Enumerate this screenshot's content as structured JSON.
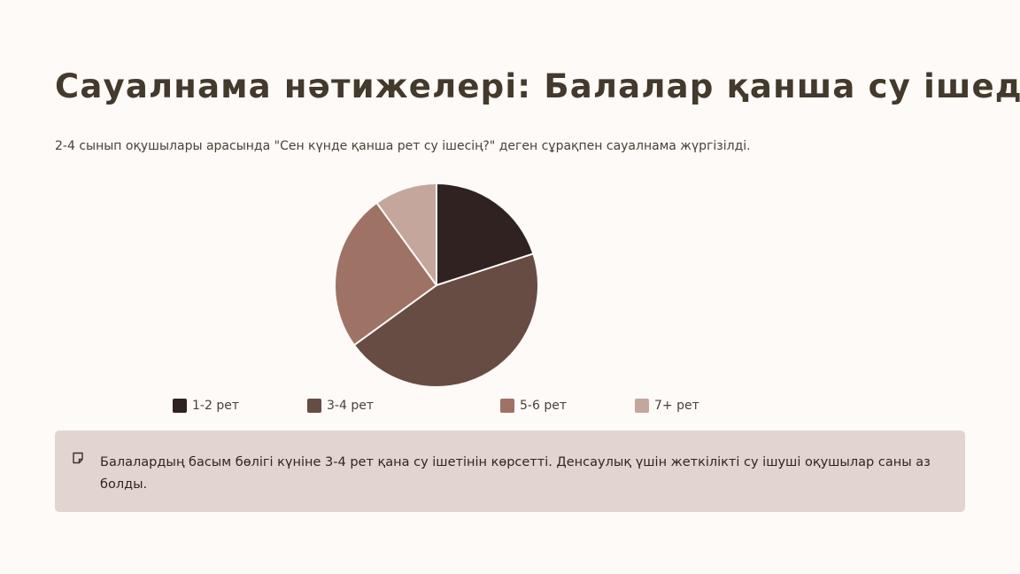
{
  "slide": {
    "title": "Сауалнама нәтижелері: Балалар қанша су ішеді",
    "subtitle": "2-4 сынып оқушылары арасында \"Сен күнде қанша рет су ішесің?\" деген сұрақпен сауалнама жүргізілді."
  },
  "chart_data": {
    "type": "pie",
    "title": "",
    "categories": [
      "1-2 рет",
      "3-4 рет",
      "5-6 рет",
      "7+ рет"
    ],
    "values": [
      20,
      45,
      25,
      10
    ],
    "colors": [
      "#2f2220",
      "#674c44",
      "#9e7366",
      "#c4a69c"
    ],
    "legend_position": "bottom"
  },
  "note": {
    "icon": "note-icon",
    "text": "Балалардың басым бөлігі күніне 3-4 рет қана су ішетінін көрсетті. Денсаулық үшін жеткілікті су ішуші оқушылар саны аз болды."
  }
}
